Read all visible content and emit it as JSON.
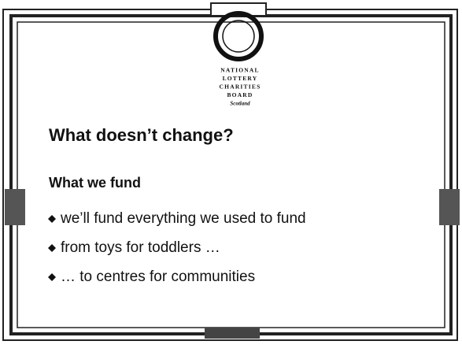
{
  "logo": {
    "lines": [
      "NATIONAL",
      "LOTTERY",
      "CHARITIES",
      "BOARD",
      "Scotland"
    ]
  },
  "slide": {
    "title": "What doesn’t change?",
    "subtitle": "What we fund",
    "bullets": [
      "we’ll fund everything we used to fund",
      "from toys for toddlers …",
      "… to centres for communities"
    ]
  }
}
